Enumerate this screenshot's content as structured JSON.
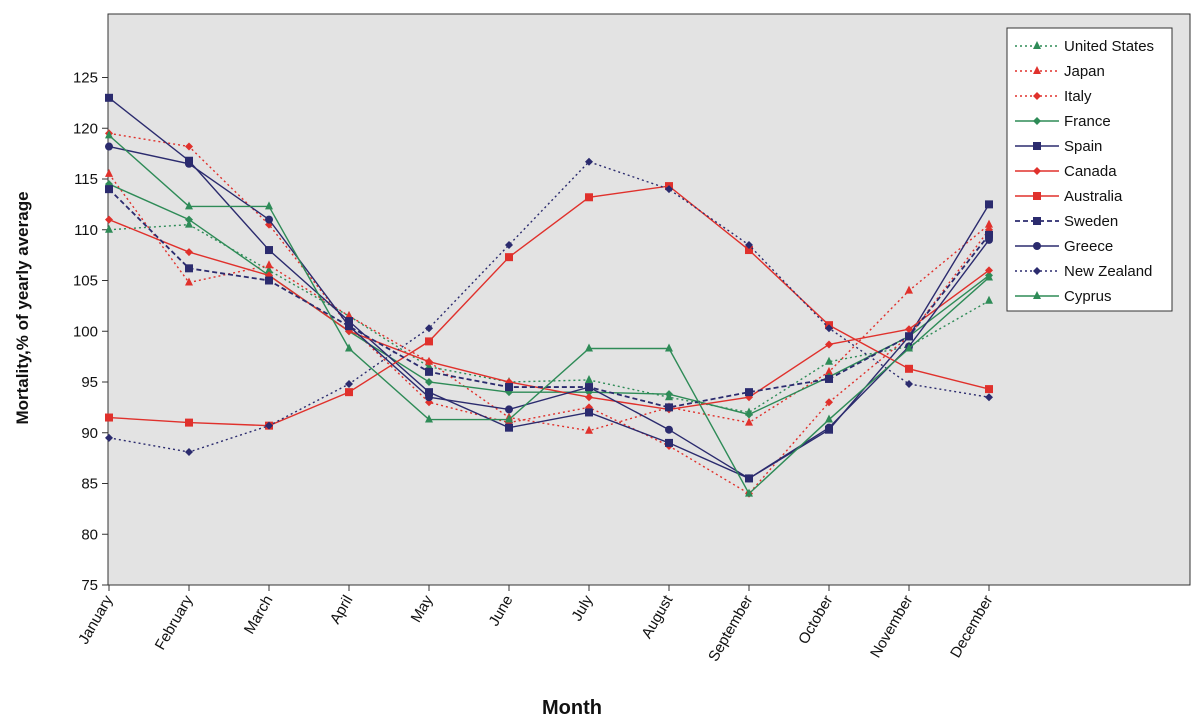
{
  "chart_data": {
    "type": "line",
    "xlabel": "Month",
    "ylabel": "Mortality,% of yearly average",
    "ylim": [
      75,
      130
    ],
    "y_ticks": [
      75,
      80,
      85,
      90,
      95,
      100,
      105,
      110,
      115,
      120,
      125
    ],
    "x": [
      "January",
      "February",
      "March",
      "April",
      "May",
      "June",
      "July",
      "August",
      "September",
      "October",
      "November",
      "December"
    ],
    "legend_position": "top-right",
    "plot_background": "#e3e3e3",
    "grid": false,
    "series": [
      {
        "name": "United States",
        "color": "#2e8b57",
        "dash": "dotted",
        "marker": "triangle",
        "values": [
          110,
          110.5,
          106,
          101.5,
          96.5,
          95,
          95.2,
          93.5,
          92,
          97,
          98.5,
          103
        ]
      },
      {
        "name": "Japan",
        "color": "#e0312c",
        "dash": "dotted",
        "marker": "triangle",
        "values": [
          115.5,
          104.8,
          106.5,
          101.5,
          97,
          91.5,
          90.2,
          92.5,
          91,
          96,
          104,
          110.5
        ]
      },
      {
        "name": "Italy",
        "color": "#e0312c",
        "dash": "dotted",
        "marker": "diamond",
        "values": [
          119.5,
          118.2,
          110.5,
          100.5,
          93,
          91,
          92.5,
          88.7,
          84,
          93,
          99.5,
          110
        ]
      },
      {
        "name": "France",
        "color": "#2e8b57",
        "dash": "solid",
        "marker": "diamond",
        "values": [
          114.5,
          111,
          105.5,
          100,
          95,
          94,
          94,
          93.8,
          91.8,
          95.5,
          99.5,
          105.5
        ]
      },
      {
        "name": "Spain",
        "color": "#2b2b6e",
        "dash": "solid",
        "marker": "square",
        "values": [
          123,
          116.8,
          108,
          101,
          94,
          90.5,
          92,
          89,
          85.5,
          90.3,
          99.5,
          112.5
        ]
      },
      {
        "name": "Canada",
        "color": "#e0312c",
        "dash": "solid",
        "marker": "diamond",
        "values": [
          111,
          107.8,
          105.5,
          100,
          97,
          95,
          93.5,
          92.3,
          93.5,
          98.7,
          100.2,
          106
        ]
      },
      {
        "name": "Australia",
        "color": "#e0312c",
        "dash": "solid",
        "marker": "square",
        "values": [
          91.5,
          91,
          90.7,
          94,
          99,
          107.3,
          113.2,
          114.3,
          108,
          100.6,
          96.3,
          94.3
        ]
      },
      {
        "name": "Sweden",
        "color": "#2b2b6e",
        "dash": "dashed",
        "marker": "square",
        "values": [
          114,
          106.2,
          105,
          100.5,
          96,
          94.5,
          94.5,
          92.5,
          94,
          95.3,
          99.5,
          109.5
        ]
      },
      {
        "name": "Greece",
        "color": "#2b2b6e",
        "dash": "solid",
        "marker": "circle",
        "values": [
          118.2,
          116.5,
          111,
          100.5,
          93.5,
          92.3,
          94.5,
          90.3,
          85.5,
          90.5,
          98.5,
          109
        ]
      },
      {
        "name": "New Zealand",
        "color": "#2b2b6e",
        "dash": "dotted",
        "marker": "diamond",
        "values": [
          89.5,
          88.1,
          90.7,
          94.8,
          100.3,
          108.5,
          116.7,
          114,
          108.5,
          100.3,
          94.8,
          93.5
        ]
      },
      {
        "name": "Cyprus",
        "color": "#2e8b57",
        "dash": "solid",
        "marker": "triangle",
        "values": [
          119.3,
          112.3,
          112.3,
          98.3,
          91.3,
          91.3,
          98.3,
          98.3,
          84,
          91.3,
          98.3,
          105.3
        ]
      }
    ]
  }
}
